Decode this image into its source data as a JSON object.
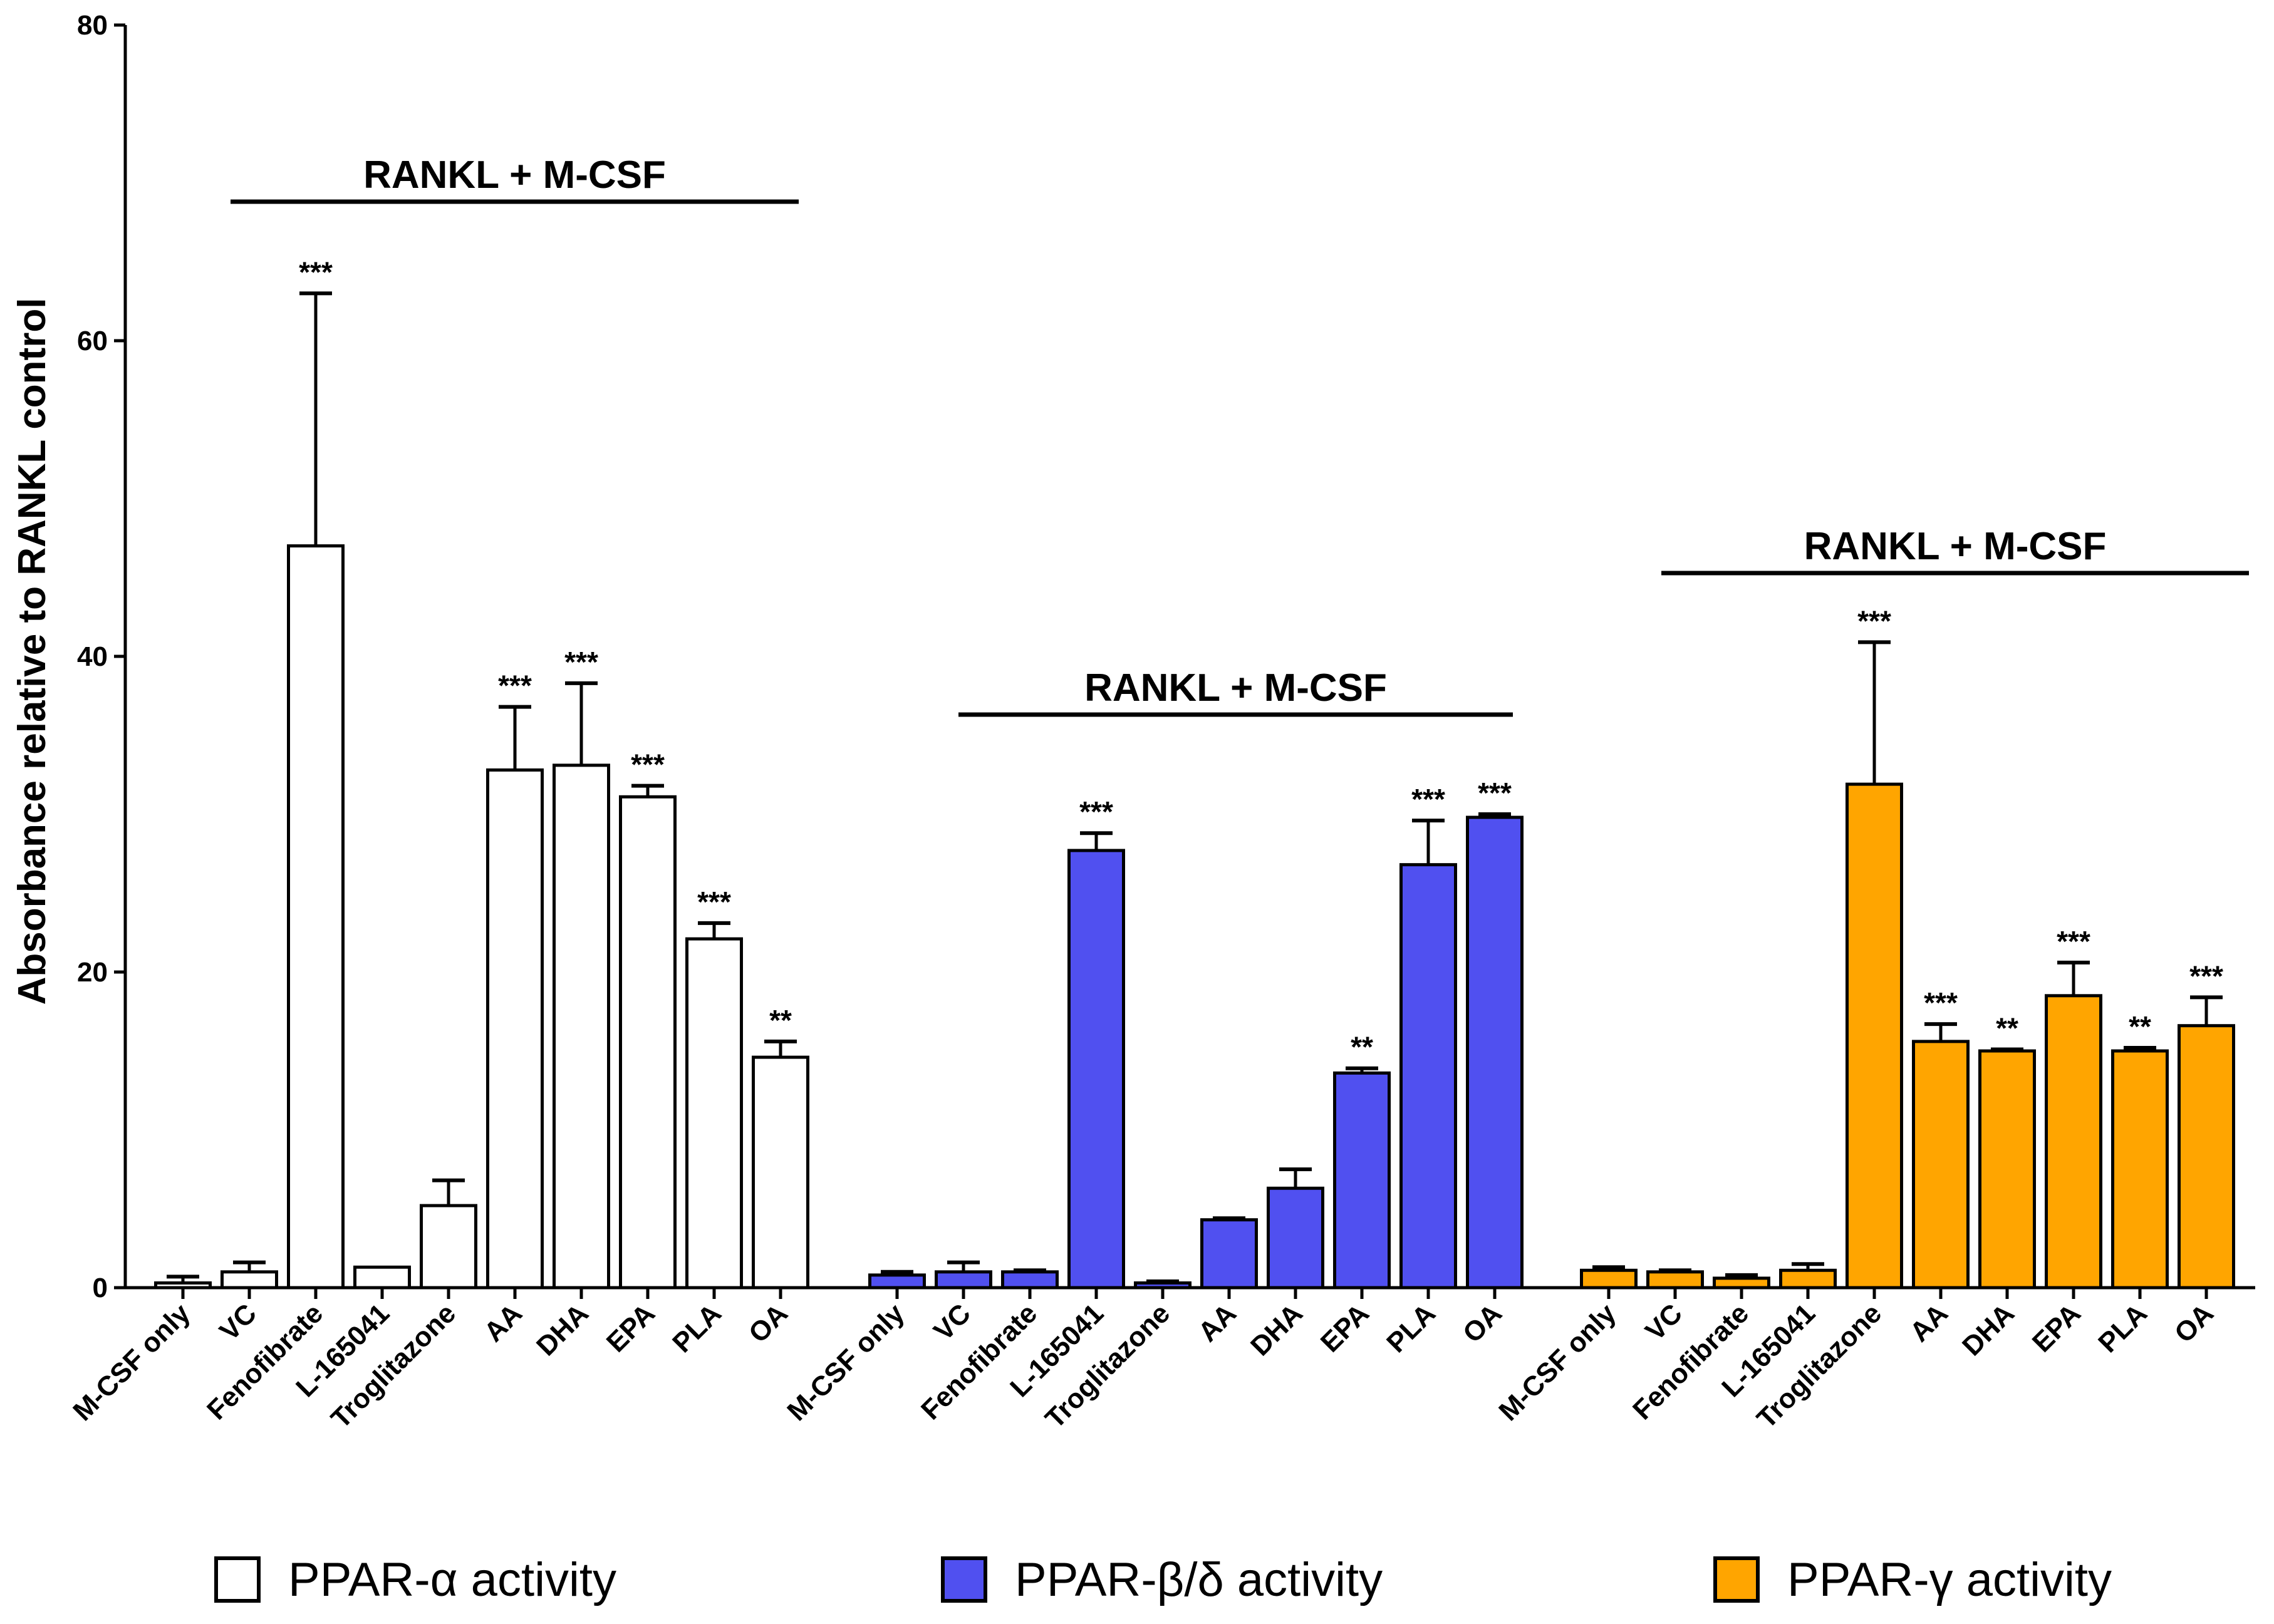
{
  "chart_data": {
    "type": "bar",
    "title": "",
    "xlabel": "",
    "ylabel": "Absorbance relative to RANKL control",
    "ylim": [
      0,
      80
    ],
    "yticks": [
      "0",
      "20",
      "40",
      "60",
      "80"
    ],
    "grid": false,
    "legend_position": "bottom",
    "bracket_label": "RANKL + M-CSF",
    "groups": [
      {
        "name": "PPAR-α activity",
        "color": "#ffffff",
        "categories": [
          "M-CSF only",
          "VC",
          "Fenofibrate",
          "L-165041",
          "Troglitazone",
          "AA",
          "DHA",
          "EPA",
          "PLA",
          "OA"
        ],
        "values": [
          0.3,
          1.0,
          47.0,
          1.3,
          5.2,
          32.8,
          33.1,
          31.1,
          22.1,
          14.6
        ],
        "errors": [
          0.4,
          0.6,
          16.0,
          0.0,
          1.6,
          4.0,
          5.2,
          0.7,
          1.0,
          1.0
        ],
        "significance": [
          "",
          "",
          "***",
          "",
          "",
          "***",
          "***",
          "***",
          "***",
          "**"
        ]
      },
      {
        "name": "PPAR-β/δ activity",
        "color": "#5050f0",
        "categories": [
          "M-CSF only",
          "VC",
          "Fenofibrate",
          "L-165041",
          "Troglitazone",
          "AA",
          "DHA",
          "EPA",
          "PLA",
          "OA"
        ],
        "values": [
          0.8,
          1.0,
          1.0,
          27.7,
          0.3,
          4.3,
          6.3,
          13.6,
          26.8,
          29.8
        ],
        "errors": [
          0.2,
          0.6,
          0.1,
          1.1,
          0.1,
          0.1,
          1.2,
          0.3,
          2.8,
          0.2
        ],
        "significance": [
          "",
          "",
          "",
          "***",
          "",
          "",
          "",
          "**",
          "***",
          "***"
        ]
      },
      {
        "name": "PPAR-γ activity",
        "color": "#ffa500",
        "categories": [
          "M-CSF only",
          "VC",
          "Fenofibrate",
          "L-165041",
          "Troglitazone",
          "AA",
          "DHA",
          "EPA",
          "PLA",
          "OA"
        ],
        "values": [
          1.1,
          1.0,
          0.6,
          1.1,
          31.9,
          15.6,
          15.0,
          18.5,
          15.0,
          16.6
        ],
        "errors": [
          0.2,
          0.1,
          0.2,
          0.4,
          9.0,
          1.1,
          0.1,
          2.1,
          0.2,
          1.8
        ],
        "significance": [
          "",
          "",
          "",
          "",
          "***",
          "***",
          "**",
          "***",
          "**",
          "***"
        ]
      }
    ]
  }
}
